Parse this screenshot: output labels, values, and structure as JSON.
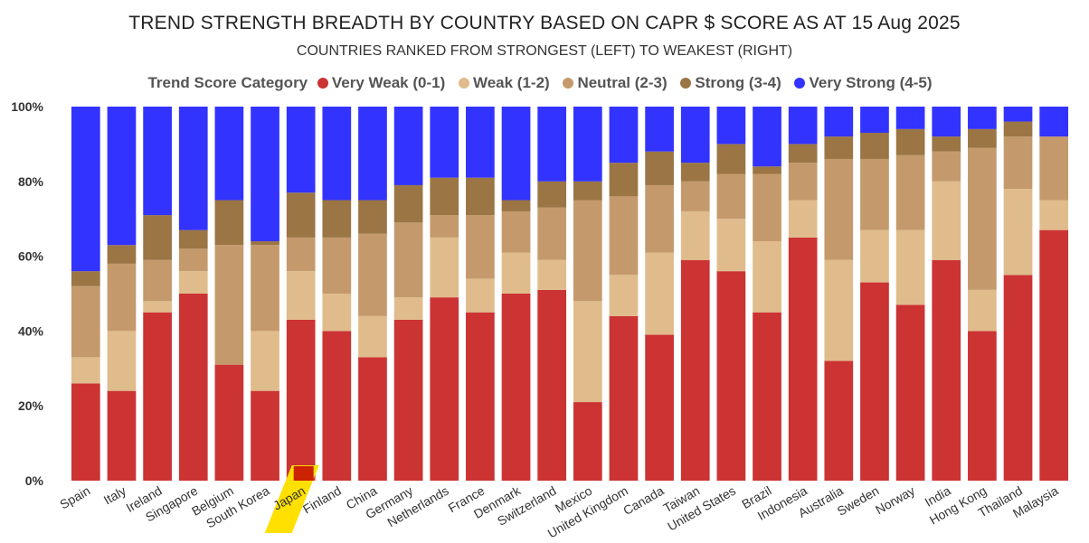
{
  "chart_data": {
    "type": "bar",
    "stacked": true,
    "title": "TREND STRENGTH BREADTH BY COUNTRY BASED ON CAPR $ SCORE AS AT 15 Aug 2025",
    "subtitle": "COUNTRIES RANKED FROM STRONGEST (LEFT) TO WEAKEST (RIGHT)",
    "legend_title": "Trend Score Category",
    "ylim": [
      0,
      100
    ],
    "yticks": [
      "0%",
      "20%",
      "40%",
      "60%",
      "80%",
      "100%"
    ],
    "highlight": "Japan",
    "categories": [
      "Spain",
      "Italy",
      "Ireland",
      "Singapore",
      "Belgium",
      "South Korea",
      "Japan",
      "Finland",
      "China",
      "Germany",
      "Netherlands",
      "France",
      "Denmark",
      "Switzerland",
      "Mexico",
      "United Kingdom",
      "Canada",
      "Taiwan",
      "United States",
      "Brazil",
      "Indonesia",
      "Australia",
      "Sweden",
      "Norway",
      "India",
      "Hong Kong",
      "Thailand",
      "Malaysia"
    ],
    "series": [
      {
        "name": "Very Weak (0-1)",
        "color": "#cc3333",
        "values": [
          26,
          24,
          45,
          50,
          31,
          24,
          43,
          40,
          33,
          43,
          49,
          45,
          50,
          51,
          21,
          44,
          39,
          59,
          56,
          45,
          65,
          32,
          53,
          47,
          59,
          40,
          55,
          67
        ]
      },
      {
        "name": "Weak (1-2)",
        "color": "#e0bc8c",
        "values": [
          7,
          16,
          3,
          6,
          0,
          16,
          13,
          10,
          11,
          6,
          16,
          9,
          11,
          8,
          27,
          11,
          22,
          13,
          14,
          19,
          10,
          27,
          14,
          20,
          21,
          11,
          23,
          8
        ]
      },
      {
        "name": "Neutral (2-3)",
        "color": "#c49a6c",
        "values": [
          19,
          18,
          11,
          6,
          32,
          23,
          9,
          15,
          22,
          20,
          6,
          17,
          11,
          14,
          27,
          21,
          18,
          8,
          12,
          18,
          10,
          27,
          19,
          20,
          8,
          38,
          14,
          17
        ]
      },
      {
        "name": "Strong (3-4)",
        "color": "#9b7544",
        "values": [
          4,
          5,
          12,
          5,
          12,
          1,
          12,
          10,
          9,
          10,
          10,
          10,
          3,
          7,
          5,
          9,
          9,
          5,
          8,
          2,
          5,
          6,
          7,
          7,
          4,
          5,
          4,
          0
        ]
      },
      {
        "name": "Very Strong (4-5)",
        "color": "#3333ff",
        "values": [
          44,
          37,
          29,
          33,
          25,
          36,
          23,
          25,
          25,
          21,
          19,
          19,
          25,
          20,
          20,
          15,
          12,
          15,
          10,
          16,
          10,
          8,
          7,
          6,
          8,
          6,
          4,
          8
        ]
      }
    ]
  }
}
